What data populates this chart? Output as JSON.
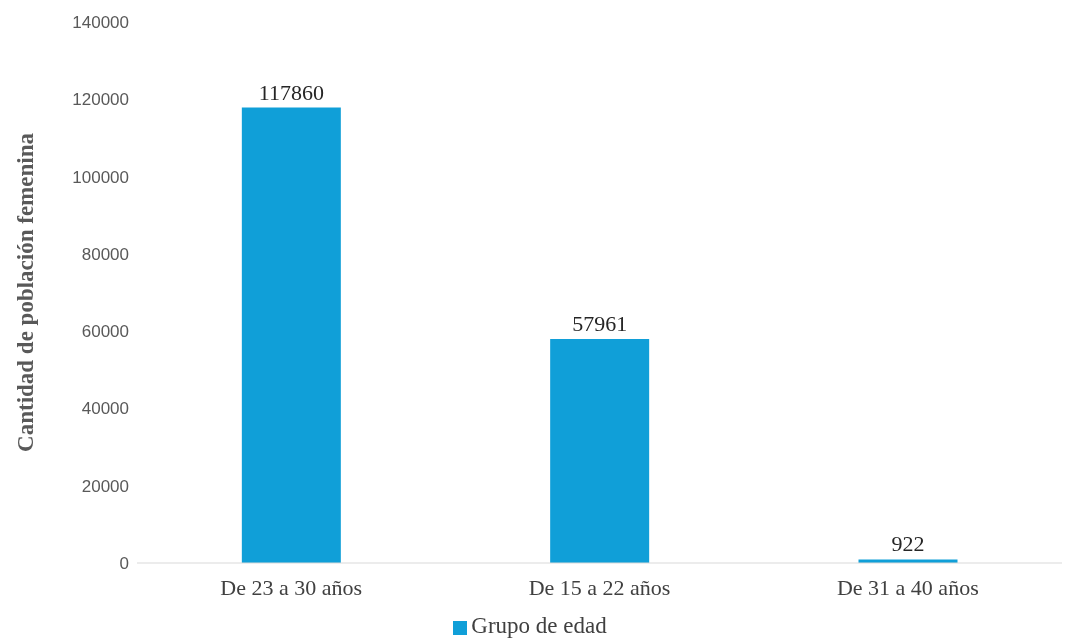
{
  "chart_data": {
    "type": "bar",
    "ylabel": "Cantidad de población femenina",
    "categories": [
      "De 23 a 30 años",
      "De 15 a 22 años",
      "De 31 a 40 años"
    ],
    "series": [
      {
        "name": "Grupo de edad",
        "color": "#109fd8",
        "values": [
          117860,
          57961,
          922
        ]
      }
    ],
    "ylim": [
      0,
      140000
    ],
    "yticks": [
      0,
      20000,
      40000,
      60000,
      80000,
      100000,
      120000,
      140000
    ],
    "data_labels": true,
    "legend": "bottom"
  }
}
